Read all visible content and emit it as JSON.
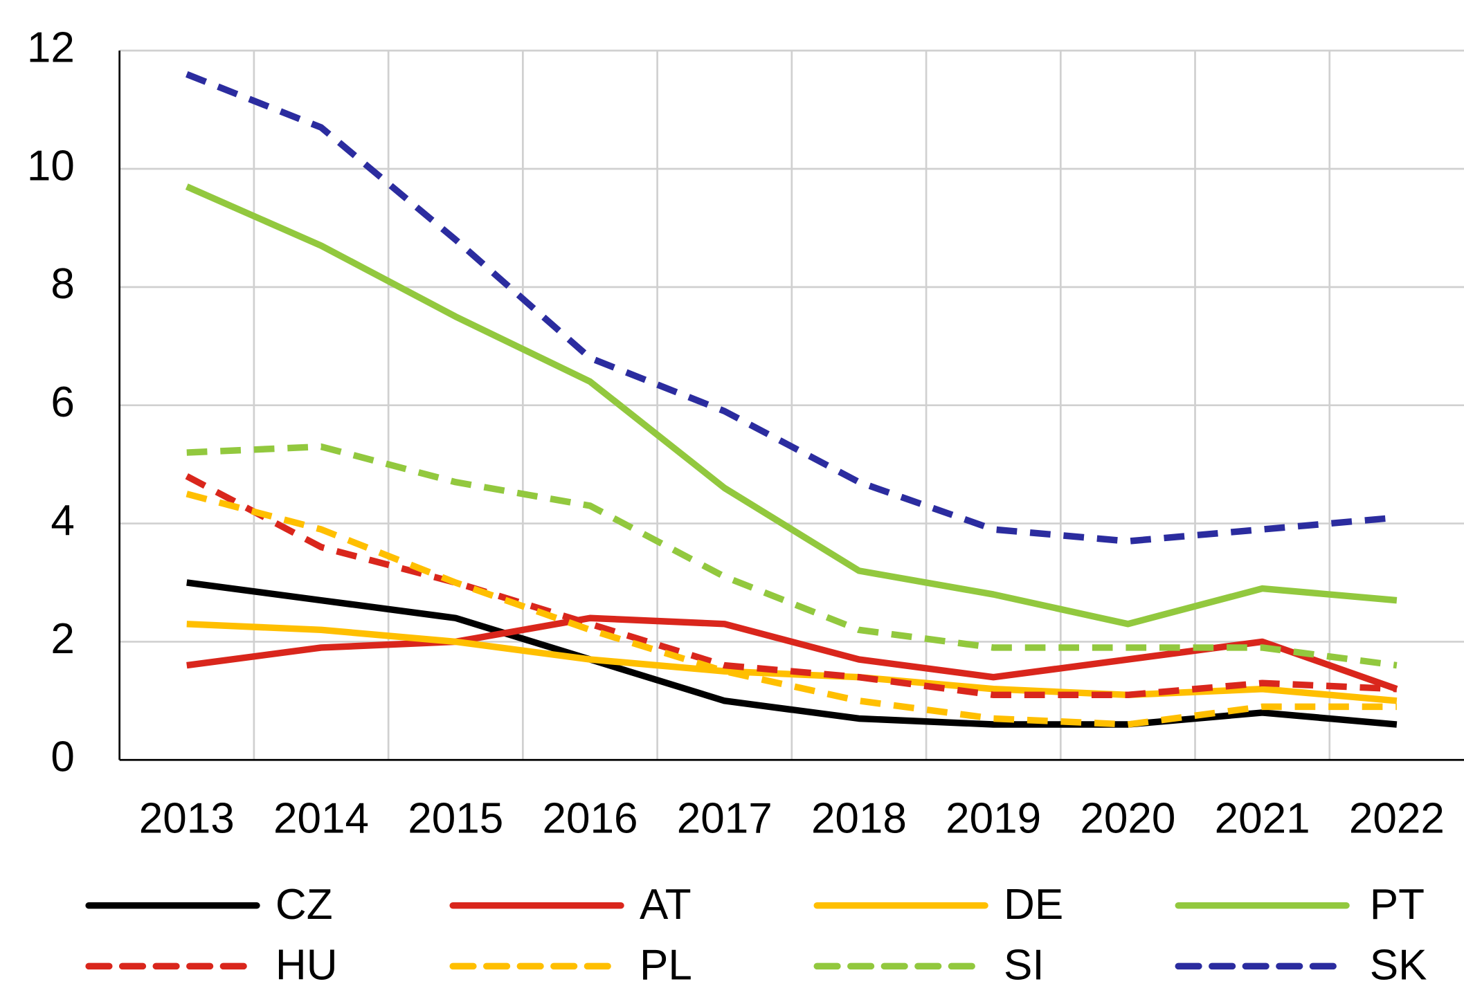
{
  "chart_data": {
    "type": "line",
    "categories": [
      "2013",
      "2014",
      "2015",
      "2016",
      "2017",
      "2018",
      "2019",
      "2020",
      "2021",
      "2022"
    ],
    "series": [
      {
        "name": "CZ",
        "color": "#000000",
        "dashed": false,
        "values": [
          3.0,
          2.7,
          2.4,
          1.7,
          1.0,
          0.7,
          0.6,
          0.6,
          0.8,
          0.6
        ]
      },
      {
        "name": "AT",
        "color": "#d9261c",
        "dashed": false,
        "values": [
          1.6,
          1.9,
          2.0,
          2.4,
          2.3,
          1.7,
          1.4,
          1.7,
          2.0,
          1.2
        ]
      },
      {
        "name": "DE",
        "color": "#ffbf00",
        "dashed": false,
        "values": [
          2.3,
          2.2,
          2.0,
          1.7,
          1.5,
          1.4,
          1.2,
          1.1,
          1.2,
          1.0
        ]
      },
      {
        "name": "PT",
        "color": "#92c83e",
        "dashed": false,
        "values": [
          9.7,
          8.7,
          7.5,
          6.4,
          4.6,
          3.2,
          2.8,
          2.3,
          2.9,
          2.7
        ]
      },
      {
        "name": "HU",
        "color": "#d9261c",
        "dashed": true,
        "values": [
          4.8,
          3.6,
          3.0,
          2.3,
          1.6,
          1.4,
          1.1,
          1.1,
          1.3,
          1.2
        ]
      },
      {
        "name": "PL",
        "color": "#ffbf00",
        "dashed": true,
        "values": [
          4.5,
          3.9,
          3.0,
          2.2,
          1.5,
          1.0,
          0.7,
          0.6,
          0.9,
          0.9
        ]
      },
      {
        "name": "SI",
        "color": "#92c83e",
        "dashed": true,
        "values": [
          5.2,
          5.3,
          4.7,
          4.3,
          3.1,
          2.2,
          1.9,
          1.9,
          1.9,
          1.6
        ]
      },
      {
        "name": "SK",
        "color": "#2b2c9f",
        "dashed": true,
        "values": [
          11.6,
          10.7,
          8.8,
          6.8,
          5.9,
          4.7,
          3.9,
          3.7,
          3.9,
          4.1
        ]
      }
    ],
    "ylim": [
      0,
      12
    ],
    "yticks": [
      0,
      2,
      4,
      6,
      8,
      10,
      12
    ],
    "grid": true,
    "legend": "bottom"
  }
}
